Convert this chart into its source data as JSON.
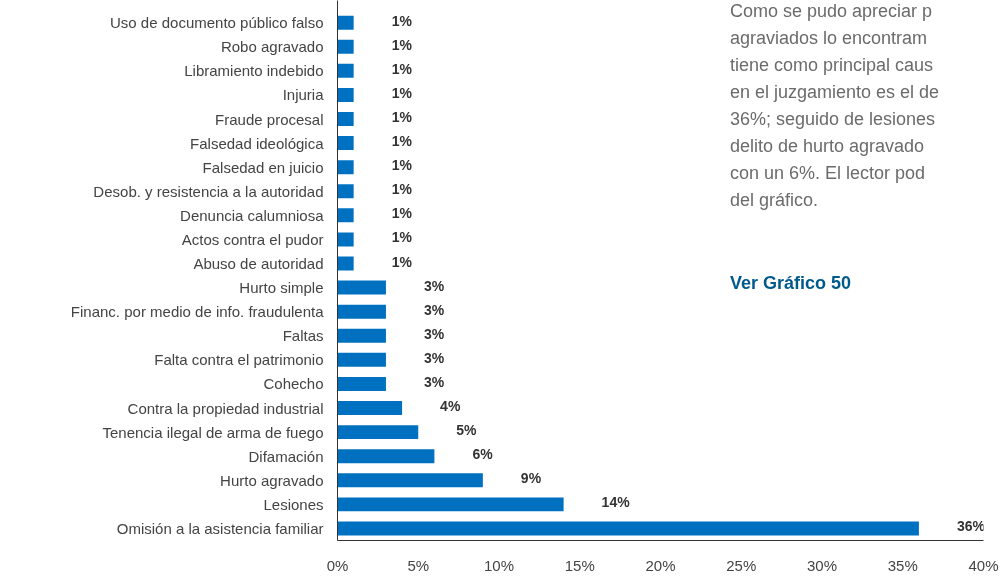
{
  "chart_data": {
    "type": "bar",
    "orientation": "horizontal",
    "categories": [
      "Uso de documento público falso",
      "Robo agravado",
      "Libramiento indebido",
      "Injuria",
      "Fraude procesal",
      "Falsedad ideológica",
      "Falsedad en juicio",
      "Desob. y resistencia a la autoridad",
      "Denuncia calumniosa",
      "Actos contra el pudor",
      "Abuso de autoridad",
      "Hurto simple",
      "Financ. por medio de info. fraudulenta",
      "Faltas",
      "Falta contra el patrimonio",
      "Cohecho",
      "Contra la propiedad industrial",
      "Tenencia ilegal de arma de fuego",
      "Difamación",
      "Hurto agravado",
      "Lesiones",
      "Omisión a la asistencia familiar"
    ],
    "values": [
      1,
      1,
      1,
      1,
      1,
      1,
      1,
      1,
      1,
      1,
      1,
      3,
      3,
      3,
      3,
      3,
      4,
      5,
      6,
      9,
      14,
      36
    ],
    "value_labels": [
      "1%",
      "1%",
      "1%",
      "1%",
      "1%",
      "1%",
      "1%",
      "1%",
      "1%",
      "1%",
      "1%",
      "3%",
      "3%",
      "3%",
      "3%",
      "3%",
      "4%",
      "5%",
      "6%",
      "9%",
      "14%",
      "36%"
    ],
    "color": "#0071c1",
    "xlim": [
      0,
      40
    ],
    "xticks": [
      {
        "value": 0,
        "label": "0%"
      },
      {
        "value": 5,
        "label": "5%"
      },
      {
        "value": 10,
        "label": "10%"
      },
      {
        "value": 15,
        "label": "15%"
      },
      {
        "value": 20,
        "label": "20%"
      },
      {
        "value": 25,
        "label": "25%"
      },
      {
        "value": 30,
        "label": "30%"
      },
      {
        "value": 35,
        "label": "35%"
      },
      {
        "value": 40,
        "label": "40%"
      }
    ],
    "grid": false,
    "annotations": [
      "Como se pudo apreciar p\nagraviados lo encontram\ntiene como principal caus\nen el juzgamiento es el de\n36%; seguido de lesiones\ndelito de hurto agravado\ncon un 6%. El lector pod\ndel gráfico.",
      "Ver Gráfico 50"
    ]
  }
}
